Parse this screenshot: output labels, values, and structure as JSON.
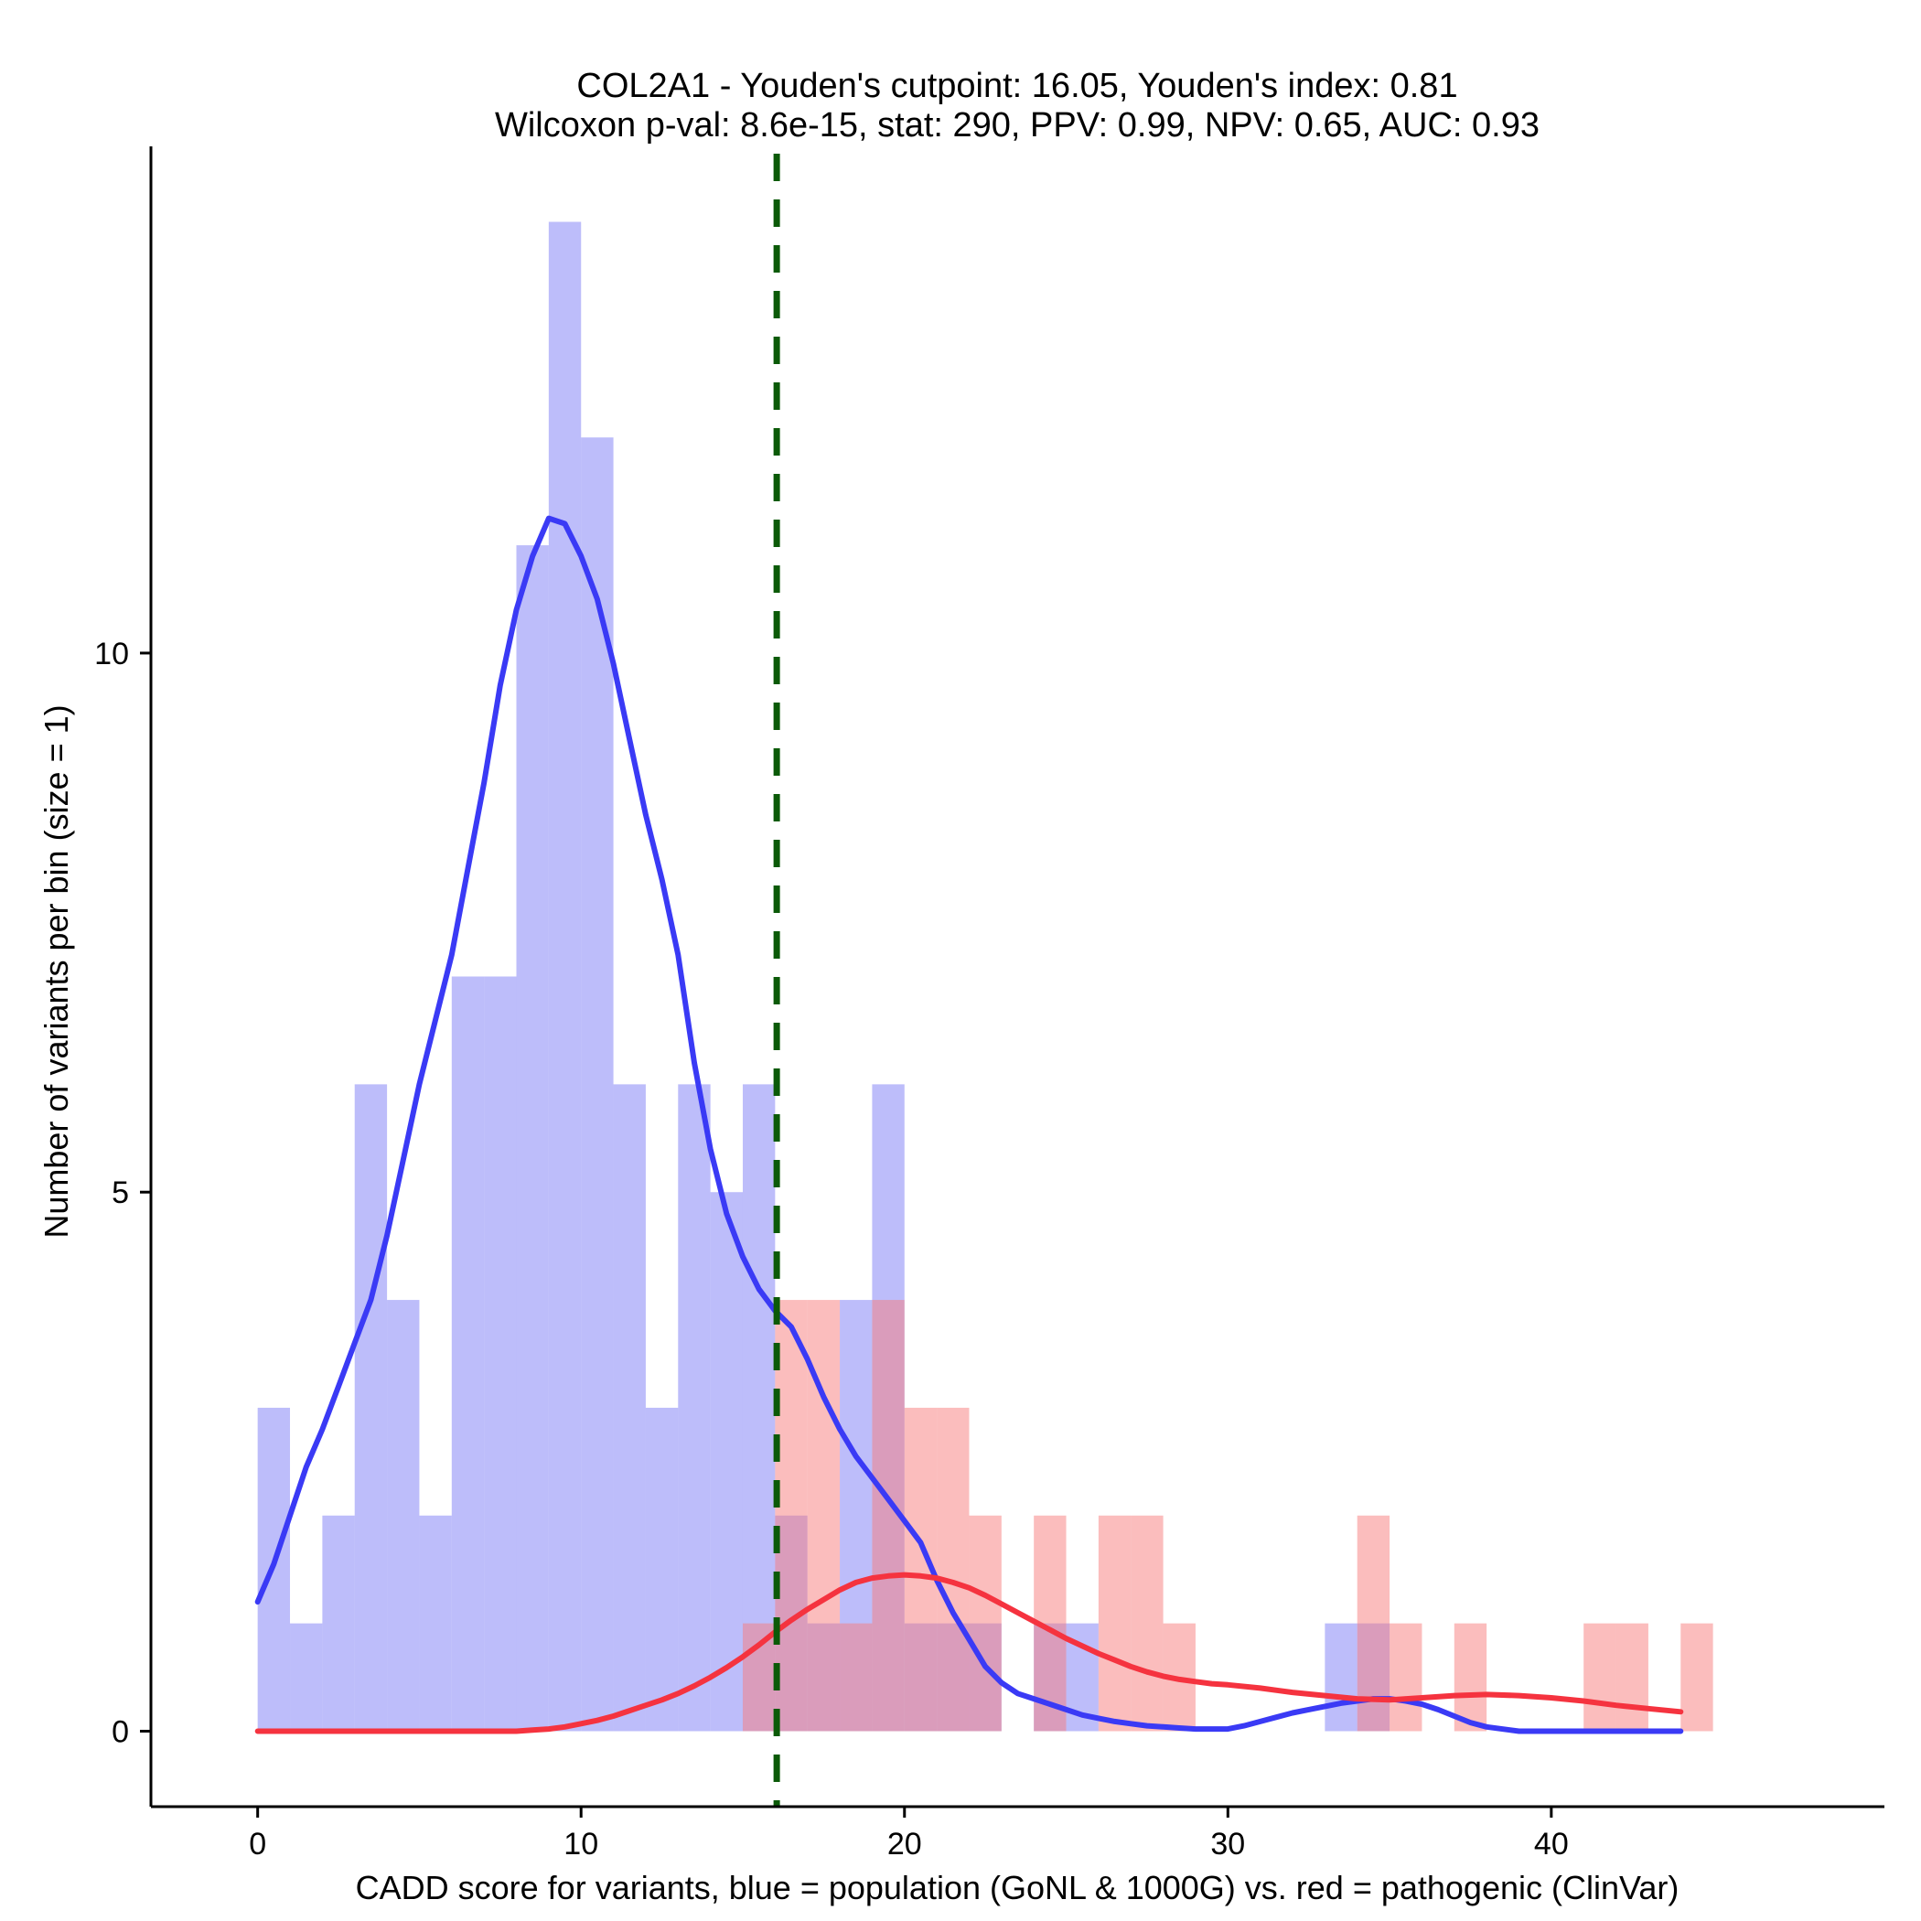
{
  "chart_data": {
    "type": "bar",
    "title_line1": "COL2A1 - Youden's cutpoint: 16.05, Youden's index: 0.81",
    "title_line2": "Wilcoxon p-val: 8.6e-15, stat: 290, PPV: 0.99, NPV: 0.65, AUC: 0.93",
    "xlabel": "CADD score for variants, blue = population (GoNL & 1000G) vs. red = pathogenic (ClinVar)",
    "ylabel": "Number of variants per bin (size = 1)",
    "xlim": [
      -3.3,
      50.3
    ],
    "ylim": [
      -0.7,
      14.7
    ],
    "x_ticks": [
      {
        "value": 0,
        "label": "0"
      },
      {
        "value": 10,
        "label": "10"
      },
      {
        "value": 20,
        "label": "20"
      },
      {
        "value": 30,
        "label": "30"
      },
      {
        "value": 40,
        "label": "40"
      }
    ],
    "y_ticks": [
      {
        "value": 0,
        "label": "0"
      },
      {
        "value": 5,
        "label": "5"
      },
      {
        "value": 10,
        "label": "10"
      }
    ],
    "bin_width": 1,
    "cutpoint": 16.05,
    "colors": {
      "population_bar": "#7b7bf6",
      "pathogenic_bar": "#f87c7c",
      "population_line": "#3a3af5",
      "pathogenic_line": "#f5333f",
      "cutpoint": "#0b5a08",
      "axis": "#000000"
    },
    "series": [
      {
        "name": "population (GoNL & 1000G)",
        "bins": [
          {
            "x": 0,
            "count": 3
          },
          {
            "x": 1,
            "count": 1
          },
          {
            "x": 2,
            "count": 2
          },
          {
            "x": 3,
            "count": 6
          },
          {
            "x": 4,
            "count": 4
          },
          {
            "x": 5,
            "count": 2
          },
          {
            "x": 6,
            "count": 7
          },
          {
            "x": 7,
            "count": 7
          },
          {
            "x": 8,
            "count": 11
          },
          {
            "x": 9,
            "count": 14
          },
          {
            "x": 10,
            "count": 12
          },
          {
            "x": 11,
            "count": 6
          },
          {
            "x": 12,
            "count": 3
          },
          {
            "x": 13,
            "count": 6
          },
          {
            "x": 14,
            "count": 5
          },
          {
            "x": 15,
            "count": 6
          },
          {
            "x": 16,
            "count": 2
          },
          {
            "x": 17,
            "count": 1
          },
          {
            "x": 18,
            "count": 4
          },
          {
            "x": 19,
            "count": 6
          },
          {
            "x": 20,
            "count": 1
          },
          {
            "x": 21,
            "count": 1
          },
          {
            "x": 22,
            "count": 1
          },
          {
            "x": 24,
            "count": 1
          },
          {
            "x": 25,
            "count": 1
          },
          {
            "x": 33,
            "count": 1
          },
          {
            "x": 34,
            "count": 1
          }
        ]
      },
      {
        "name": "pathogenic (ClinVar)",
        "bins": [
          {
            "x": 15,
            "count": 1
          },
          {
            "x": 16,
            "count": 4
          },
          {
            "x": 17,
            "count": 4
          },
          {
            "x": 18,
            "count": 1
          },
          {
            "x": 19,
            "count": 4
          },
          {
            "x": 20,
            "count": 3
          },
          {
            "x": 21,
            "count": 3
          },
          {
            "x": 22,
            "count": 2
          },
          {
            "x": 24,
            "count": 2
          },
          {
            "x": 26,
            "count": 2
          },
          {
            "x": 27,
            "count": 2
          },
          {
            "x": 28,
            "count": 1
          },
          {
            "x": 34,
            "count": 2
          },
          {
            "x": 35,
            "count": 1
          },
          {
            "x": 37,
            "count": 1
          },
          {
            "x": 41,
            "count": 1
          },
          {
            "x": 42,
            "count": 1
          },
          {
            "x": 44,
            "count": 1
          }
        ]
      }
    ],
    "density_curves": [
      {
        "name": "population density",
        "x": [
          0,
          0.5,
          1,
          1.5,
          2,
          2.5,
          3,
          3.5,
          4,
          4.5,
          5,
          5.5,
          6,
          6.5,
          7,
          7.5,
          8,
          8.5,
          9,
          9.5,
          10,
          10.5,
          11,
          11.5,
          12,
          12.5,
          13,
          13.5,
          14,
          14.5,
          15,
          15.5,
          16,
          16.5,
          17,
          17.5,
          18,
          18.5,
          19,
          19.5,
          20,
          20.5,
          21,
          21.5,
          22,
          22.5,
          23,
          23.5,
          24,
          24.5,
          25,
          25.5,
          26,
          26.5,
          27,
          27.5,
          28,
          28.5,
          29,
          29.5,
          30,
          30.5,
          31,
          31.5,
          32,
          32.5,
          33,
          33.5,
          34,
          34.5,
          35,
          35.5,
          36,
          36.5,
          37,
          37.5,
          38,
          39,
          40,
          41,
          42,
          43,
          44
        ],
        "y": [
          1.2,
          1.55,
          2.0,
          2.45,
          2.8,
          3.2,
          3.6,
          4.0,
          4.6,
          5.3,
          6.0,
          6.6,
          7.2,
          8.0,
          8.8,
          9.7,
          10.4,
          10.9,
          11.25,
          11.2,
          10.9,
          10.5,
          9.9,
          9.2,
          8.5,
          7.9,
          7.2,
          6.2,
          5.4,
          4.8,
          4.4,
          4.1,
          3.9,
          3.75,
          3.45,
          3.1,
          2.8,
          2.55,
          2.35,
          2.15,
          1.95,
          1.75,
          1.4,
          1.1,
          0.85,
          0.6,
          0.45,
          0.35,
          0.3,
          0.25,
          0.2,
          0.15,
          0.12,
          0.09,
          0.07,
          0.05,
          0.04,
          0.03,
          0.02,
          0.02,
          0.02,
          0.05,
          0.09,
          0.13,
          0.17,
          0.2,
          0.23,
          0.26,
          0.28,
          0.3,
          0.3,
          0.28,
          0.25,
          0.2,
          0.14,
          0.08,
          0.04,
          0.0,
          0.0,
          0.0,
          0.0,
          0.0,
          0.0
        ]
      },
      {
        "name": "pathogenic density",
        "x": [
          0,
          2,
          4,
          6,
          8,
          8.5,
          9,
          9.5,
          10,
          10.5,
          11,
          11.5,
          12,
          12.5,
          13,
          13.5,
          14,
          14.5,
          15,
          15.5,
          16,
          16.5,
          17,
          17.5,
          18,
          18.5,
          19,
          19.5,
          20,
          20.5,
          21,
          21.5,
          22,
          22.5,
          23,
          23.5,
          24,
          24.5,
          25,
          25.5,
          26,
          26.5,
          27,
          27.5,
          28,
          28.5,
          29,
          29.5,
          30,
          31,
          32,
          33,
          34,
          35,
          36,
          37,
          38,
          39,
          40,
          41,
          42,
          43,
          44
        ],
        "y": [
          0,
          0,
          0,
          0,
          0,
          0.01,
          0.02,
          0.04,
          0.07,
          0.1,
          0.14,
          0.19,
          0.24,
          0.29,
          0.35,
          0.42,
          0.5,
          0.59,
          0.69,
          0.8,
          0.92,
          1.03,
          1.13,
          1.22,
          1.31,
          1.38,
          1.42,
          1.44,
          1.45,
          1.44,
          1.42,
          1.38,
          1.33,
          1.26,
          1.18,
          1.1,
          1.02,
          0.94,
          0.86,
          0.79,
          0.72,
          0.66,
          0.6,
          0.55,
          0.51,
          0.48,
          0.46,
          0.44,
          0.43,
          0.4,
          0.36,
          0.33,
          0.3,
          0.29,
          0.31,
          0.33,
          0.34,
          0.33,
          0.31,
          0.28,
          0.24,
          0.21,
          0.18
        ]
      }
    ]
  }
}
